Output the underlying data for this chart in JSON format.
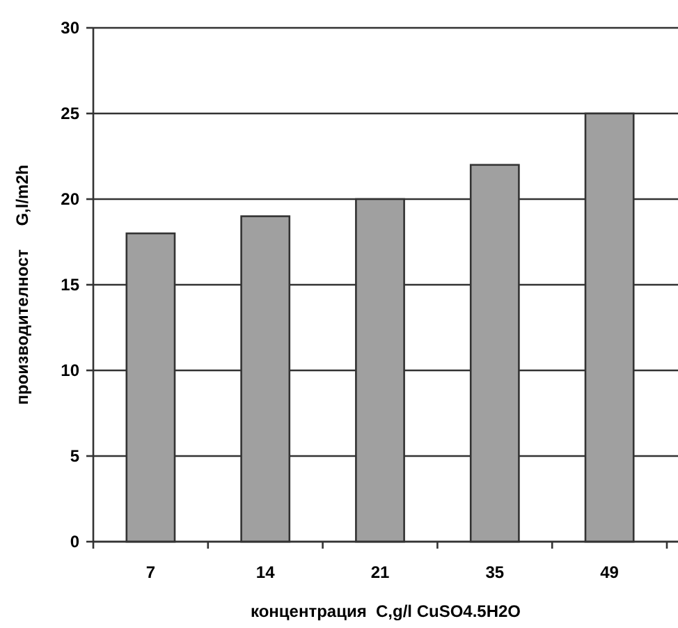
{
  "chart_data": {
    "type": "bar",
    "xlabel": "концентрация  C,g/l CuSO4.5H2O",
    "ylabel": "производителност     G,l/m2h",
    "categories": [
      "7",
      "14",
      "21",
      "35",
      "49"
    ],
    "values": [
      18,
      19,
      20,
      22,
      25
    ],
    "color": "#a0a0a0",
    "ylim": [
      0,
      30
    ],
    "yticks": [
      0,
      5,
      10,
      15,
      20,
      25,
      30
    ],
    "grid": "y"
  }
}
